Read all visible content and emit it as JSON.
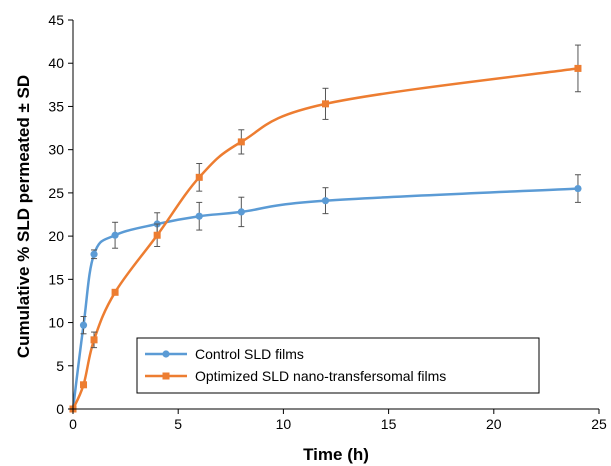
{
  "chart_data": {
    "type": "line",
    "title": "",
    "xlabel": "Time (h)",
    "ylabel": "Cumulative % SLD permeated ± SD",
    "xlim": [
      0,
      25
    ],
    "ylim": [
      0,
      45
    ],
    "xticks": [
      0,
      5,
      10,
      15,
      20,
      25
    ],
    "yticks": [
      0,
      5,
      10,
      15,
      20,
      25,
      30,
      35,
      40,
      45
    ],
    "grid": false,
    "legend_position": "bottom-right",
    "series": [
      {
        "name": "Control SLD films",
        "color": "#5B9BD5",
        "marker": "circle",
        "x": [
          0,
          0.5,
          1,
          2,
          4,
          6,
          8,
          12,
          24
        ],
        "y": [
          0,
          9.7,
          17.9,
          20.1,
          21.4,
          22.3,
          22.8,
          24.1,
          25.5
        ],
        "err": [
          0,
          1.0,
          0.5,
          1.5,
          1.3,
          1.6,
          1.7,
          1.5,
          1.6
        ]
      },
      {
        "name": "Optimized SLD nano-transfersomal films",
        "color": "#ED7D31",
        "marker": "square",
        "x": [
          0,
          0.5,
          1,
          2,
          4,
          6,
          8,
          12,
          24
        ],
        "y": [
          0,
          2.8,
          8.0,
          13.5,
          20.1,
          26.8,
          30.9,
          35.3,
          39.4
        ],
        "err": [
          0,
          0.3,
          0.9,
          0.3,
          1.3,
          1.6,
          1.4,
          1.8,
          2.7
        ]
      }
    ]
  }
}
